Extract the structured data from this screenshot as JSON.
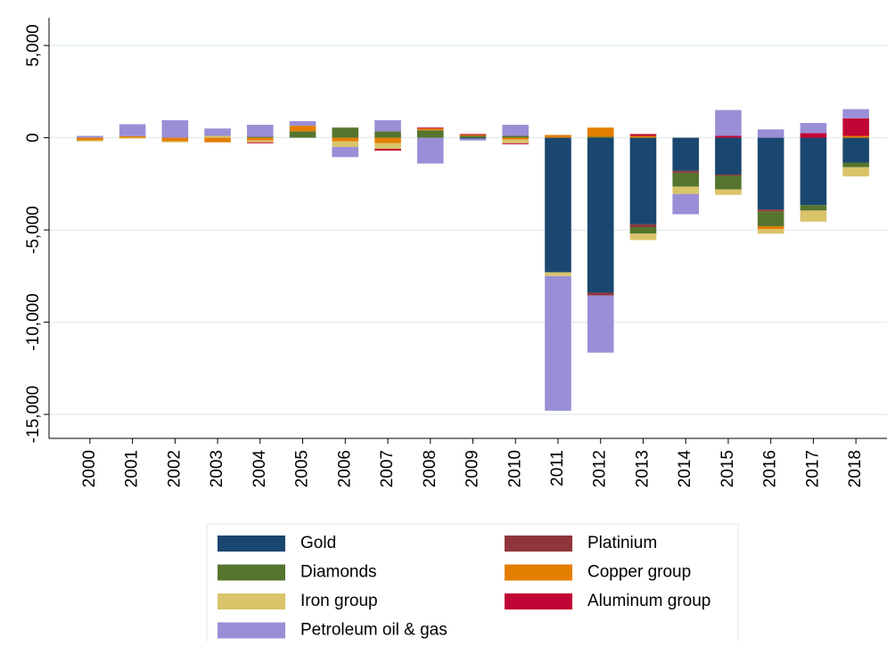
{
  "chart_data": {
    "type": "stacked_bar",
    "categories": [
      "2000",
      "2001",
      "2002",
      "2003",
      "2004",
      "2005",
      "2006",
      "2007",
      "2008",
      "2009",
      "2010",
      "2011",
      "2012",
      "2013",
      "2014",
      "2015",
      "2016",
      "2017",
      "2018"
    ],
    "series": [
      {
        "name": "Gold",
        "color": "#1a476f",
        "values": [
          0,
          0,
          0,
          0,
          0,
          0,
          0,
          0,
          0,
          -50,
          0,
          -7300,
          -8400,
          -4700,
          -1800,
          -2000,
          -3900,
          -3650,
          -1350
        ]
      },
      {
        "name": "Platinium",
        "color": "#90353b",
        "values": [
          0,
          0,
          0,
          0,
          0,
          0,
          0,
          0,
          0,
          0,
          0,
          0,
          -150,
          -150,
          -100,
          -50,
          -100,
          0,
          0
        ]
      },
      {
        "name": "Diamonds",
        "color": "#55752f",
        "values": [
          0,
          0,
          0,
          0,
          50,
          350,
          550,
          350,
          400,
          100,
          100,
          0,
          50,
          -350,
          -750,
          -750,
          -800,
          -300,
          -250
        ]
      },
      {
        "name": "Copper group",
        "color": "#e37e00",
        "values": [
          -150,
          80,
          -200,
          -250,
          -150,
          300,
          -200,
          -300,
          100,
          50,
          -100,
          150,
          500,
          100,
          0,
          0,
          -150,
          0,
          100
        ]
      },
      {
        "name": "Iron group",
        "color": "#d9c46a",
        "values": [
          -50,
          -50,
          -50,
          100,
          -100,
          0,
          -300,
          -300,
          0,
          0,
          -200,
          -200,
          0,
          -350,
          -400,
          -300,
          -250,
          -600,
          -500
        ]
      },
      {
        "name": "Aluminum group",
        "color": "#c10534",
        "values": [
          0,
          0,
          0,
          0,
          -50,
          0,
          0,
          -100,
          50,
          50,
          -50,
          0,
          0,
          100,
          0,
          100,
          0,
          250,
          950
        ]
      },
      {
        "name": "Petroleum oil & gas",
        "color": "#9a8fd6",
        "values": [
          100,
          650,
          950,
          400,
          650,
          250,
          -550,
          600,
          -1400,
          -100,
          600,
          -7300,
          -3100,
          0,
          -1100,
          1400,
          450,
          550,
          500
        ]
      }
    ],
    "ylim": [
      -16300,
      6500
    ],
    "yticks": [
      {
        "value": -15000,
        "label": "-15,000"
      },
      {
        "value": -10000,
        "label": "-10,000"
      },
      {
        "value": -5000,
        "label": "-5,000"
      },
      0,
      {
        "value": 5000,
        "label": "5,000"
      }
    ],
    "grid": true
  }
}
